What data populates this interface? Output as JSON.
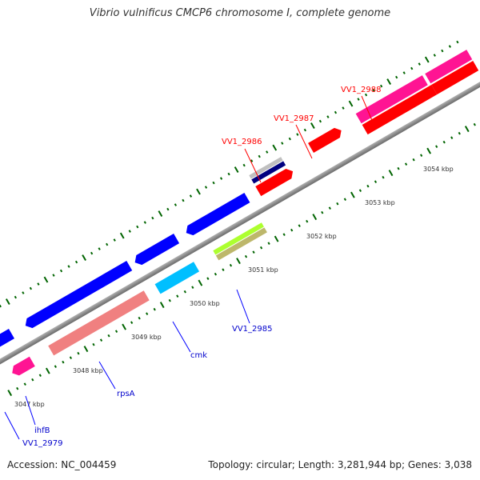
{
  "title": "Vibrio vulnificus CMCP6 chromosome I, complete genome",
  "footer": {
    "accession": "Accession: NC_004459",
    "stats": "Topology: circular; Length: 3,281,944 bp; Genes: 3,038"
  },
  "kbp_labels": [
    "3047 kbp",
    "3048 kbp",
    "3049 kbp",
    "3050 kbp",
    "3051 kbp",
    "3052 kbp",
    "3053 kbp",
    "3054 kbp"
  ],
  "genes": [
    {
      "label": "VV1_2979",
      "strand": "reverse",
      "color": "#0000ff"
    },
    {
      "label": "ihfB",
      "strand": "reverse",
      "color": "#ff1493"
    },
    {
      "label": "rpsA",
      "strand": "reverse",
      "color": "#f08080"
    },
    {
      "label": "cmk",
      "strand": "reverse",
      "color": "#00bfff"
    },
    {
      "label": "VV1_2985",
      "strand": "reverse",
      "color": "#adff2f"
    },
    {
      "label": "VV1_2986",
      "strand": "forward",
      "color": "#000080"
    },
    {
      "label": "VV1_2987",
      "strand": "forward",
      "color": "#ff0000"
    },
    {
      "label": "VV1_2988",
      "strand": "forward",
      "color": "#ff1493"
    }
  ],
  "unlabeled_genes": [
    {
      "strand": "reverse",
      "color": "#0000ff"
    },
    {
      "strand": "reverse",
      "color": "#0000ff"
    },
    {
      "strand": "reverse",
      "color": "#0000ff"
    },
    {
      "strand": "reverse",
      "color": "#bdb76b"
    },
    {
      "strand": "forward",
      "color": "#c0c0c0"
    },
    {
      "strand": "forward",
      "color": "#ff0000"
    },
    {
      "strand": "forward",
      "color": "#ff0000"
    },
    {
      "strand": "forward",
      "color": "#ff1493"
    },
    {
      "strand": "forward",
      "color": "#ff0000"
    }
  ],
  "colors": {
    "backbone": "#808080",
    "tick": "#006400",
    "forward_label": "#ff0000",
    "reverse_label": "#0000cc"
  }
}
